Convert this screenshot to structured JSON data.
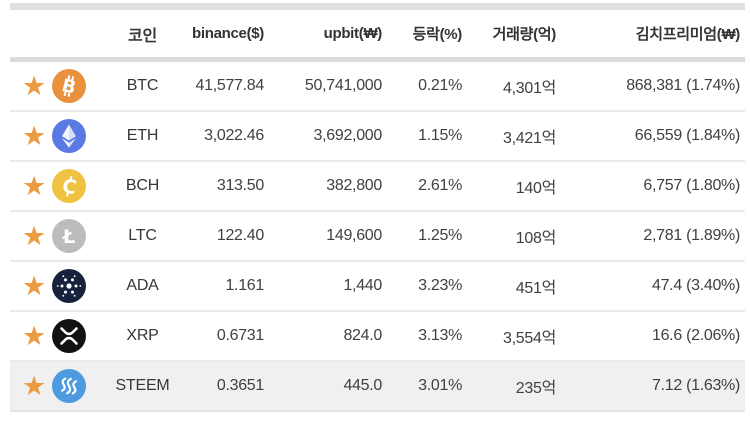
{
  "header": {
    "coin": "코인",
    "binance": "binance($)",
    "upbit": "upbit(₩)",
    "change": "등락(%)",
    "volume": "거래량(억)",
    "premium": "김치프리미엄(₩)"
  },
  "colors": {
    "accent_blue": "#1B1BE0",
    "star_orange": "#EC9B40",
    "muted_value": "#9E9EC6",
    "highlight_row_bg": "#F0F0F0",
    "separator": "#DCDCDC",
    "btc_icon": "#E9913D",
    "eth_icon": "#5B79E3",
    "bch_icon": "#EFC241",
    "ltc_icon": "#BCBCBC",
    "ada_icon": "#17223C",
    "xrp_icon": "#111111",
    "steem_icon": "#4D9BDE"
  },
  "table": {
    "rows": [
      {
        "ticker": "BTC",
        "binance": "41,577.84",
        "upbit": "50,741,000",
        "change": "0.21%",
        "volume": "4,301억",
        "premium": "868,381 (1.74%)",
        "icon": "btc-coin-icon",
        "favorited": true,
        "binance_muted": false,
        "highlighted": false
      },
      {
        "ticker": "ETH",
        "binance": "3,022.46",
        "upbit": "3,692,000",
        "change": "1.15%",
        "volume": "3,421억",
        "premium": "66,559 (1.84%)",
        "icon": "eth-coin-icon",
        "favorited": true,
        "binance_muted": false,
        "highlighted": false
      },
      {
        "ticker": "BCH",
        "binance": "313.50",
        "upbit": "382,800",
        "change": "2.61%",
        "volume": "140억",
        "premium": "6,757 (1.80%)",
        "icon": "bch-coin-icon",
        "favorited": true,
        "binance_muted": false,
        "highlighted": false
      },
      {
        "ticker": "LTC",
        "binance": "122.40",
        "upbit": "149,600",
        "change": "1.25%",
        "volume": "108억",
        "premium": "2,781 (1.89%)",
        "icon": "ltc-coin-icon",
        "favorited": true,
        "binance_muted": false,
        "highlighted": false
      },
      {
        "ticker": "ADA",
        "binance": "1.161",
        "upbit": "1,440",
        "change": "3.23%",
        "volume": "451억",
        "premium": "47.4 (3.40%)",
        "icon": "ada-coin-icon",
        "favorited": true,
        "binance_muted": false,
        "highlighted": false
      },
      {
        "ticker": "XRP",
        "binance": "0.6731",
        "upbit": "824.0",
        "change": "3.13%",
        "volume": "3,554억",
        "premium": "16.6 (2.06%)",
        "icon": "xrp-coin-icon",
        "favorited": true,
        "binance_muted": false,
        "highlighted": false
      },
      {
        "ticker": "STEEM",
        "binance": "0.3651",
        "upbit": "445.0",
        "change": "3.01%",
        "volume": "235억",
        "premium": "7.12 (1.63%)",
        "icon": "steem-coin-icon",
        "favorited": true,
        "binance_muted": true,
        "highlighted": true
      }
    ]
  }
}
